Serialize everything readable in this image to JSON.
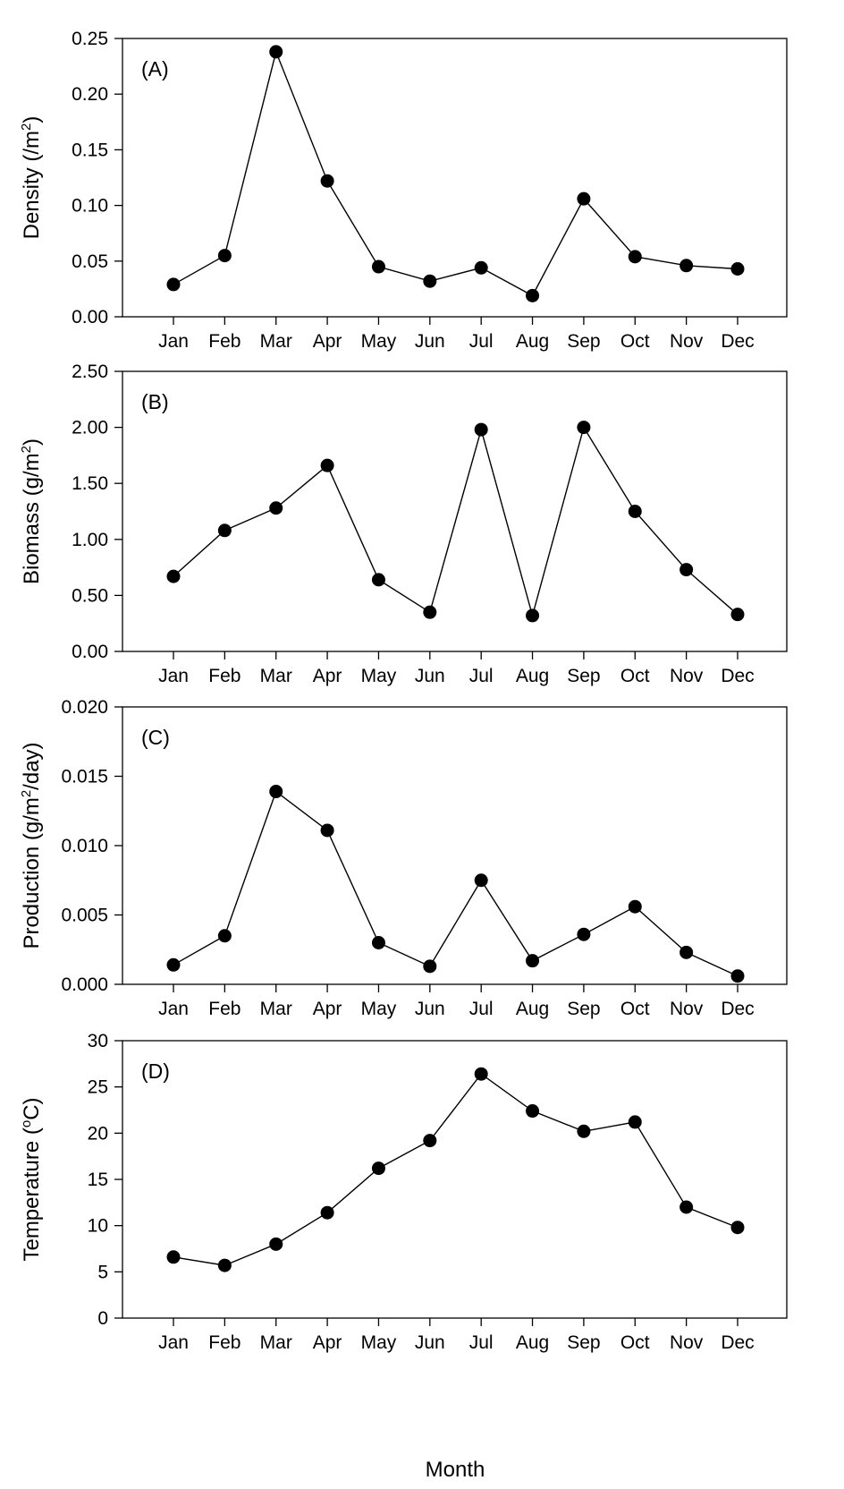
{
  "colors": {
    "line": "#000000",
    "marker": "#000000",
    "frame": "#000000",
    "background": "#ffffff"
  },
  "xlabel": "Month",
  "chart_data": [
    {
      "type": "line",
      "panel_label": "(A)",
      "ylabel": [
        "Density (/m",
        "2",
        ")"
      ],
      "ylim": [
        0,
        0.25
      ],
      "yticks": [
        "0.00",
        "0.05",
        "0.10",
        "0.15",
        "0.20",
        "0.25"
      ],
      "categories": [
        "Jan",
        "Feb",
        "Mar",
        "Apr",
        "May",
        "Jun",
        "Jul",
        "Aug",
        "Sep",
        "Oct",
        "Nov",
        "Dec"
      ],
      "values": [
        0.029,
        0.055,
        0.238,
        0.122,
        0.045,
        0.032,
        0.044,
        0.019,
        0.106,
        0.054,
        0.046,
        0.043
      ],
      "marker": "filled-circle",
      "grid": false
    },
    {
      "type": "line",
      "panel_label": "(B)",
      "ylabel": [
        "Biomass (g/m",
        "2",
        ")"
      ],
      "ylim": [
        0,
        2.5
      ],
      "yticks": [
        "0.00",
        "0.50",
        "1.00",
        "1.50",
        "2.00",
        "2.50"
      ],
      "categories": [
        "Jan",
        "Feb",
        "Mar",
        "Apr",
        "May",
        "Jun",
        "Jul",
        "Aug",
        "Sep",
        "Oct",
        "Nov",
        "Dec"
      ],
      "values": [
        0.67,
        1.08,
        1.28,
        1.66,
        0.64,
        0.35,
        1.98,
        0.32,
        2.0,
        1.25,
        0.73,
        0.33
      ],
      "marker": "filled-circle",
      "grid": false
    },
    {
      "type": "line",
      "panel_label": "(C)",
      "ylabel": [
        "Production (g/m",
        "2",
        "/day)"
      ],
      "ylim": [
        0,
        0.02
      ],
      "yticks": [
        "0.000",
        "0.005",
        "0.010",
        "0.015",
        "0.020"
      ],
      "categories": [
        "Jan",
        "Feb",
        "Mar",
        "Apr",
        "May",
        "Jun",
        "Jul",
        "Aug",
        "Sep",
        "Oct",
        "Nov",
        "Dec"
      ],
      "values": [
        0.0014,
        0.0035,
        0.0139,
        0.0111,
        0.003,
        0.0013,
        0.0075,
        0.0017,
        0.0036,
        0.0056,
        0.0023,
        0.0006
      ],
      "marker": "filled-circle",
      "grid": false
    },
    {
      "type": "line",
      "panel_label": "(D)",
      "ylabel": [
        "Temperature (",
        "o",
        "C)"
      ],
      "ylim": [
        0,
        30
      ],
      "yticks": [
        "0",
        "5",
        "10",
        "15",
        "20",
        "25",
        "30"
      ],
      "categories": [
        "Jan",
        "Feb",
        "Mar",
        "Apr",
        "May",
        "Jun",
        "Jul",
        "Aug",
        "Sep",
        "Oct",
        "Nov",
        "Dec"
      ],
      "values": [
        6.6,
        5.7,
        8.0,
        11.4,
        16.2,
        19.2,
        26.4,
        22.4,
        20.2,
        21.2,
        12.0,
        9.8
      ],
      "marker": "filled-circle",
      "grid": false
    }
  ]
}
